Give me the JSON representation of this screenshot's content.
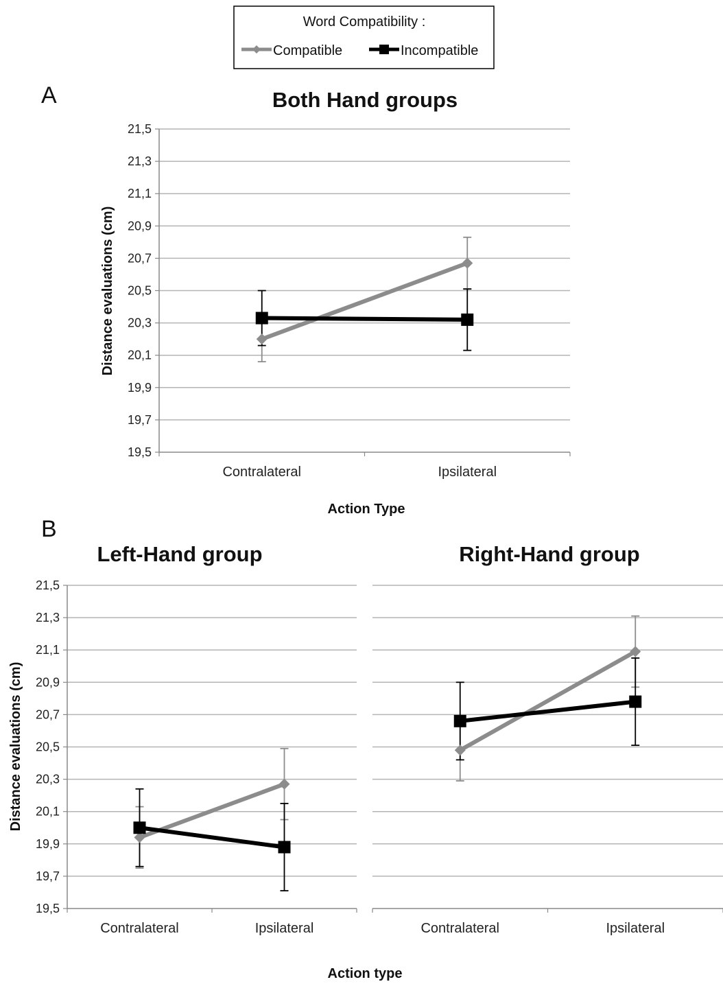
{
  "legend": {
    "title": "Word Compatibility :",
    "entries": [
      {
        "label": "Compatible",
        "color": "#8c8c8c",
        "marker": "diamond"
      },
      {
        "label": "Incompatible",
        "color": "#000000",
        "marker": "square"
      }
    ]
  },
  "panel_letters": {
    "a": "A",
    "b": "B"
  },
  "y_tick_labels": [
    "19,5",
    "19,7",
    "19,9",
    "20,1",
    "20,3",
    "20,5",
    "20,7",
    "20,9",
    "21,1",
    "21,3",
    "21,5"
  ],
  "chart_data": [
    {
      "type": "line",
      "title": "Both Hand groups",
      "xlabel": "Action Type",
      "ylabel": "Distance evaluations (cm)",
      "categories": [
        "Contralateral",
        "Ipsilateral"
      ],
      "ylim": [
        19.5,
        21.5
      ],
      "grid": true,
      "series": [
        {
          "name": "Compatible",
          "color": "#8c8c8c",
          "marker": "diamond",
          "values": [
            20.2,
            20.67
          ],
          "err_low": [
            20.06,
            20.51
          ],
          "err_high": [
            20.34,
            20.83
          ]
        },
        {
          "name": "Incompatible",
          "color": "#000000",
          "marker": "square",
          "values": [
            20.33,
            20.32
          ],
          "err_low": [
            20.16,
            20.13
          ],
          "err_high": [
            20.5,
            20.51
          ]
        }
      ]
    },
    {
      "type": "line",
      "title": "Left-Hand group",
      "xlabel": "",
      "ylabel": "Distance evaluations (cm)",
      "categories": [
        "Contralateral",
        "Ipsilateral"
      ],
      "ylim": [
        19.5,
        21.5
      ],
      "grid": true,
      "series": [
        {
          "name": "Compatible",
          "color": "#8c8c8c",
          "marker": "diamond",
          "values": [
            19.94,
            20.27
          ],
          "err_low": [
            19.75,
            20.05
          ],
          "err_high": [
            20.13,
            20.49
          ]
        },
        {
          "name": "Incompatible",
          "color": "#000000",
          "marker": "square",
          "values": [
            20.0,
            19.88
          ],
          "err_low": [
            19.76,
            19.61
          ],
          "err_high": [
            20.24,
            20.15
          ]
        }
      ]
    },
    {
      "type": "line",
      "title": "Right-Hand group",
      "xlabel": "",
      "ylabel": "",
      "categories": [
        "Contralateral",
        "Ipsilateral"
      ],
      "ylim": [
        19.5,
        21.5
      ],
      "grid": true,
      "series": [
        {
          "name": "Compatible",
          "color": "#8c8c8c",
          "marker": "diamond",
          "values": [
            20.48,
            21.09
          ],
          "err_low": [
            20.29,
            20.87
          ],
          "err_high": [
            20.67,
            21.31
          ]
        },
        {
          "name": "Incompatible",
          "color": "#000000",
          "marker": "square",
          "values": [
            20.66,
            20.78
          ],
          "err_low": [
            20.42,
            20.51
          ],
          "err_high": [
            20.9,
            21.05
          ]
        }
      ]
    }
  ],
  "shared_xlabel_b": "Action type"
}
